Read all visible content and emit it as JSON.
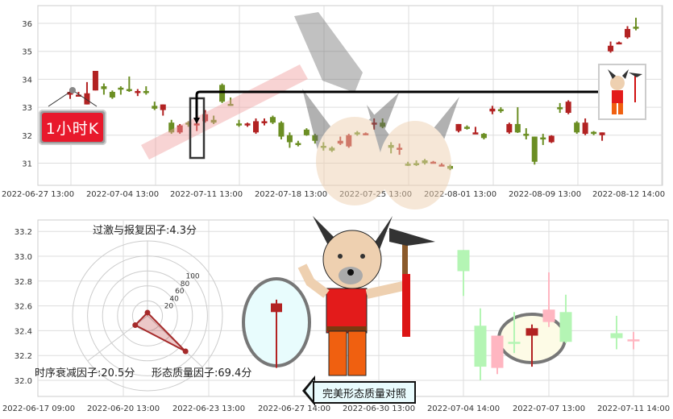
{
  "badge": {
    "label": "1小时K"
  },
  "compare_button": {
    "label": "完美形态质量对照"
  },
  "colors": {
    "up": "#b22222",
    "down": "#6b8e23",
    "up_pale": "#ffb6c1",
    "down_pale": "#b4f5b4",
    "badge": "#e8192c"
  },
  "chart_data": [
    {
      "type": "candlestick",
      "title": "",
      "ylim": [
        30.3,
        36.4
      ],
      "yticks": [
        "31",
        "32",
        "33",
        "34",
        "35",
        "36"
      ],
      "xticks": [
        "2022-06-27 13:00",
        "2022-07-04 13:00",
        "2022-07-11 13:00",
        "2022-07-18 13:00",
        "2022-07-25 13:00",
        "2022-08-01 13:00",
        "2022-08-09 13:00",
        "2022-08-12 14:00"
      ],
      "grid": true,
      "candles": [
        {
          "o": 33.45,
          "c": 33.55,
          "h": 33.65,
          "l": 33.3
        },
        {
          "o": 33.45,
          "c": 33.45,
          "h": 33.55,
          "l": 33.4
        },
        {
          "o": 33.1,
          "c": 33.5,
          "h": 33.9,
          "l": 33.1
        },
        {
          "o": 33.6,
          "c": 34.3,
          "h": 34.3,
          "l": 33.6
        },
        {
          "o": 33.75,
          "c": 33.65,
          "h": 33.85,
          "l": 33.45
        },
        {
          "o": 33.55,
          "c": 33.35,
          "h": 33.6,
          "l": 33.3
        },
        {
          "o": 33.7,
          "c": 33.65,
          "h": 33.75,
          "l": 33.45
        },
        {
          "o": 33.65,
          "c": 33.6,
          "h": 34.1,
          "l": 33.55
        },
        {
          "o": 33.55,
          "c": 33.58,
          "h": 33.65,
          "l": 33.4
        },
        {
          "o": 33.58,
          "c": 33.55,
          "h": 33.75,
          "l": 33.45
        },
        {
          "o": 33.05,
          "c": 32.95,
          "h": 33.2,
          "l": 32.9
        },
        {
          "o": 32.9,
          "c": 33.1,
          "h": 33.1,
          "l": 32.7
        },
        {
          "o": 32.45,
          "c": 32.1,
          "h": 32.55,
          "l": 32.05
        },
        {
          "o": 32.1,
          "c": 32.35,
          "h": 32.4,
          "l": 32.05
        },
        {
          "o": 32.45,
          "c": 32.4,
          "h": 32.5,
          "l": 32.3
        },
        {
          "o": 32.4,
          "c": 32.42,
          "h": 32.55,
          "l": 32.15
        },
        {
          "o": 32.5,
          "c": 32.75,
          "h": 32.9,
          "l": 32.45
        },
        {
          "o": 32.55,
          "c": 32.45,
          "h": 32.7,
          "l": 32.4
        },
        {
          "o": 33.8,
          "c": 33.2,
          "h": 33.85,
          "l": 33.15
        },
        {
          "o": 33.12,
          "c": 33.1,
          "h": 33.35,
          "l": 33.05
        },
        {
          "o": 32.42,
          "c": 32.4,
          "h": 32.55,
          "l": 32.3
        },
        {
          "o": 32.4,
          "c": 32.42,
          "h": 32.45,
          "l": 32.3
        },
        {
          "o": 32.1,
          "c": 32.5,
          "h": 32.6,
          "l": 32.05
        },
        {
          "o": 32.45,
          "c": 32.5,
          "h": 32.6,
          "l": 32.35
        },
        {
          "o": 32.65,
          "c": 32.45,
          "h": 32.7,
          "l": 32.4
        },
        {
          "o": 32.45,
          "c": 31.95,
          "h": 32.5,
          "l": 31.85
        },
        {
          "o": 32.0,
          "c": 31.75,
          "h": 32.1,
          "l": 31.55
        },
        {
          "o": 31.72,
          "c": 31.68,
          "h": 31.8,
          "l": 31.6
        },
        {
          "o": 32.2,
          "c": 32.0,
          "h": 32.25,
          "l": 31.98
        },
        {
          "o": 32.0,
          "c": 31.8,
          "h": 32.05,
          "l": 31.7
        },
        {
          "o": 31.62,
          "c": 31.58,
          "h": 31.75,
          "l": 31.45
        },
        {
          "o": 31.55,
          "c": 31.45,
          "h": 31.6,
          "l": 31.4
        },
        {
          "o": 31.7,
          "c": 31.8,
          "h": 31.95,
          "l": 31.65
        },
        {
          "o": 31.6,
          "c": 32.0,
          "h": 32.05,
          "l": 31.55
        },
        {
          "o": 32.1,
          "c": 32.08,
          "h": 32.15,
          "l": 31.98
        },
        {
          "o": 32.03,
          "c": 32.07,
          "h": 32.1,
          "l": 32.0
        },
        {
          "o": 32.4,
          "c": 32.45,
          "h": 32.6,
          "l": 32.2
        },
        {
          "o": 32.45,
          "c": 32.3,
          "h": 32.6,
          "l": 32.25
        },
        {
          "o": 31.65,
          "c": 31.55,
          "h": 31.75,
          "l": 31.35
        },
        {
          "o": 31.48,
          "c": 31.55,
          "h": 31.7,
          "l": 31.3
        },
        {
          "o": 30.98,
          "c": 30.95,
          "h": 31.05,
          "l": 30.9
        },
        {
          "o": 31.0,
          "c": 30.98,
          "h": 31.1,
          "l": 30.9
        },
        {
          "o": 31.1,
          "c": 31.0,
          "h": 31.15,
          "l": 30.95
        },
        {
          "o": 31.02,
          "c": 31.05,
          "h": 31.08,
          "l": 31.0
        },
        {
          "o": 30.95,
          "c": 30.95,
          "h": 31.0,
          "l": 30.9
        },
        {
          "o": 30.9,
          "c": 30.8,
          "h": 30.95,
          "l": 30.75
        },
        {
          "o": 32.15,
          "c": 32.4,
          "h": 32.4,
          "l": 32.1
        },
        {
          "o": 32.3,
          "c": 32.28,
          "h": 32.35,
          "l": 32.2
        },
        {
          "o": 32.08,
          "c": 32.1,
          "h": 32.3,
          "l": 32.05
        },
        {
          "o": 32.05,
          "c": 31.9,
          "h": 32.08,
          "l": 31.85
        },
        {
          "o": 32.85,
          "c": 32.95,
          "h": 33.05,
          "l": 32.75
        },
        {
          "o": 32.93,
          "c": 32.9,
          "h": 33.0,
          "l": 32.8
        },
        {
          "o": 32.1,
          "c": 32.4,
          "h": 32.45,
          "l": 32.05
        },
        {
          "o": 32.4,
          "c": 32.1,
          "h": 33.0,
          "l": 32.08
        },
        {
          "o": 32.05,
          "c": 32.0,
          "h": 32.25,
          "l": 31.85
        },
        {
          "o": 31.95,
          "c": 31.05,
          "h": 31.95,
          "l": 30.95
        },
        {
          "o": 31.92,
          "c": 31.9,
          "h": 32.05,
          "l": 31.65
        },
        {
          "o": 31.75,
          "c": 31.98,
          "h": 32.0,
          "l": 31.72
        },
        {
          "o": 33.0,
          "c": 32.98,
          "h": 33.15,
          "l": 32.8
        },
        {
          "o": 32.8,
          "c": 33.2,
          "h": 33.25,
          "l": 32.75
        },
        {
          "o": 32.45,
          "c": 32.1,
          "h": 32.5,
          "l": 32.05
        },
        {
          "o": 32.05,
          "c": 32.45,
          "h": 32.6,
          "l": 32.0
        },
        {
          "o": 32.12,
          "c": 32.08,
          "h": 32.15,
          "l": 32.0
        },
        {
          "o": 32.0,
          "c": 32.1,
          "h": 32.1,
          "l": 31.8
        },
        {
          "o": 35.0,
          "c": 35.2,
          "h": 35.35,
          "l": 34.95
        },
        {
          "o": 35.27,
          "c": 35.32,
          "h": 35.35,
          "l": 35.25
        },
        {
          "o": 35.5,
          "c": 35.8,
          "h": 35.9,
          "l": 35.45
        },
        {
          "o": 35.88,
          "c": 35.82,
          "h": 36.2,
          "l": 35.75
        }
      ]
    },
    {
      "type": "candlestick",
      "title": "",
      "ylim": [
        31.9,
        33.3
      ],
      "yticks": [
        "32.0",
        "32.2",
        "32.4",
        "32.6",
        "32.8",
        "33.0",
        "33.2"
      ],
      "xticks": [
        "2022-06-17 09:00",
        "2022-06-20 13:00",
        "2022-06-23 13:00",
        "2022-06-27 14:00",
        "2022-06-30 13:00",
        "2022-07-04 14:00",
        "2022-07-07 13:00",
        "2022-07-11 14:00"
      ],
      "grid": true,
      "highlight_candle": {
        "o": 32.55,
        "c": 32.62,
        "h": 32.65,
        "l": 32.1
      },
      "reference_candles": [
        {
          "o": 33.05,
          "c": 32.88,
          "h": 33.05,
          "l": 32.68,
          "pale": true
        },
        {
          "o": 32.44,
          "c": 32.11,
          "h": 32.58,
          "l": 32.0,
          "pale": true
        },
        {
          "o": 32.1,
          "c": 32.36,
          "h": 32.36,
          "l": 32.05,
          "pale": true
        },
        {
          "o": 32.31,
          "c": 32.3,
          "h": 32.55,
          "l": 32.22,
          "pale": true
        },
        {
          "o": 32.36,
          "c": 32.42,
          "h": 32.45,
          "l": 32.11,
          "pale": false
        },
        {
          "o": 32.47,
          "c": 32.57,
          "h": 32.87,
          "l": 32.43,
          "pale": true
        },
        {
          "o": 32.55,
          "c": 32.31,
          "h": 32.69,
          "l": 32.3,
          "pale": true
        },
        {
          "o": 32.38,
          "c": 32.34,
          "h": 32.52,
          "l": 32.25,
          "pale": true
        },
        {
          "o": 32.32,
          "c": 32.33,
          "h": 32.39,
          "l": 32.25,
          "pale": true
        }
      ]
    },
    {
      "type": "radar",
      "rings": [
        "20",
        "40",
        "60",
        "80",
        "100"
      ],
      "max": 100,
      "axes": [
        {
          "label": "过激与报复因子:4.3分",
          "value": 4.3
        },
        {
          "label": "时序衰减因子:20.5分",
          "value": 20.5
        },
        {
          "label": "形态质量因子:69.4分",
          "value": 69.4
        }
      ]
    }
  ]
}
